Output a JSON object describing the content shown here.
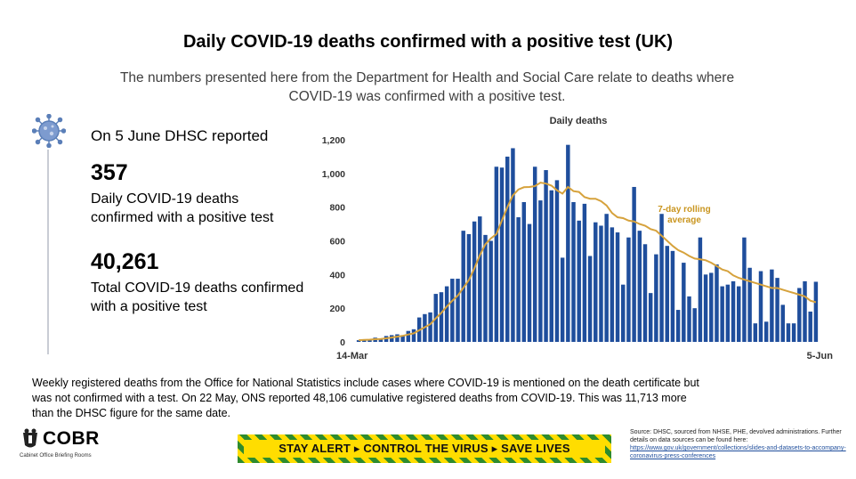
{
  "title": "Daily COVID-19 deaths confirmed with a positive test (UK)",
  "subtitle": "The numbers presented here from the Department for Health and Social Care relate to deaths where COVID-19 was confirmed with a positive test.",
  "stats": {
    "intro": "On 5 June DHSC reported",
    "daily_value": "357",
    "daily_label": "Daily COVID-19 deaths confirmed with a positive test",
    "total_value": "40,261",
    "total_label": "Total COVID-19 deaths confirmed with a positive test"
  },
  "footnote": "Weekly registered deaths from the Office for National Statistics include cases where COVID-19 is mentioned on the death certificate but was not confirmed with a test. On 22 May, ONS reported 48,106 cumulative registered deaths from COVID-19. This was 11,713 more than the DHSC figure for the same date.",
  "logo": {
    "text": "COBR",
    "subtitle": "Cabinet Office Briefing Rooms"
  },
  "banner": {
    "text": "STAY ALERT ▸ CONTROL THE VIRUS ▸ SAVE LIVES"
  },
  "source": {
    "text": "Source: DHSC, sourced from NHSE, PHE, devolved administrations. Further details on data sources can be found here:",
    "link": "https://www.gov.uk/government/collections/slides-and-datasets-to-accompany-coronavirus-press-conferences"
  },
  "colors": {
    "bar": "#1f4e9c",
    "average_line": "#d6a23c",
    "average_label": "#c9951f",
    "banner_yellow": "#ffdd00",
    "banner_green": "#2e8b2e"
  },
  "chart_data": {
    "type": "bar",
    "title": "Daily deaths",
    "x_start_label": "14-Mar",
    "x_end_label": "5-Jun",
    "ylim": [
      0,
      1200
    ],
    "yticks": [
      0,
      200,
      400,
      600,
      800,
      1000,
      1200
    ],
    "ytick_labels": [
      "0",
      "200",
      "400",
      "600",
      "800",
      "1,000",
      "1,200"
    ],
    "grid": false,
    "values": [
      10,
      15,
      15,
      25,
      20,
      35,
      40,
      45,
      40,
      65,
      75,
      145,
      165,
      175,
      285,
      295,
      330,
      375,
      375,
      660,
      640,
      715,
      745,
      635,
      600,
      1040,
      1035,
      1100,
      1150,
      740,
      830,
      700,
      1040,
      840,
      1020,
      900,
      960,
      500,
      1170,
      830,
      720,
      820,
      510,
      710,
      690,
      760,
      680,
      650,
      340,
      620,
      920,
      660,
      580,
      290,
      520,
      760,
      570,
      540,
      190,
      470,
      270,
      200,
      620,
      400,
      410,
      460,
      330,
      340,
      360,
      330,
      620,
      440,
      110,
      420,
      120,
      430,
      380,
      220,
      110,
      110,
      320,
      360,
      180,
      357
    ],
    "series": [
      {
        "name": "7-day rolling average",
        "values": [
          10,
          12,
          13,
          16,
          17,
          21,
          26,
          31,
          36,
          44,
          51,
          69,
          87,
          105,
          140,
          173,
          210,
          244,
          275,
          321,
          367,
          436,
          515,
          580,
          615,
          640,
          720,
          800,
          870,
          905,
          918,
          920,
          925,
          945,
          940,
          928,
          900,
          880,
          920,
          895,
          890,
          860,
          850,
          850,
          835,
          810,
          765,
          740,
          735,
          720,
          715,
          700,
          690,
          670,
          660,
          630,
          600,
          570,
          545,
          530,
          510,
          495,
          490,
          485,
          470,
          450,
          430,
          420,
          395,
          380,
          370,
          360,
          350,
          340,
          330,
          320,
          320,
          310,
          300,
          290,
          280,
          270,
          245,
          235
        ]
      }
    ],
    "annotations": [
      "7-day rolling average"
    ]
  }
}
